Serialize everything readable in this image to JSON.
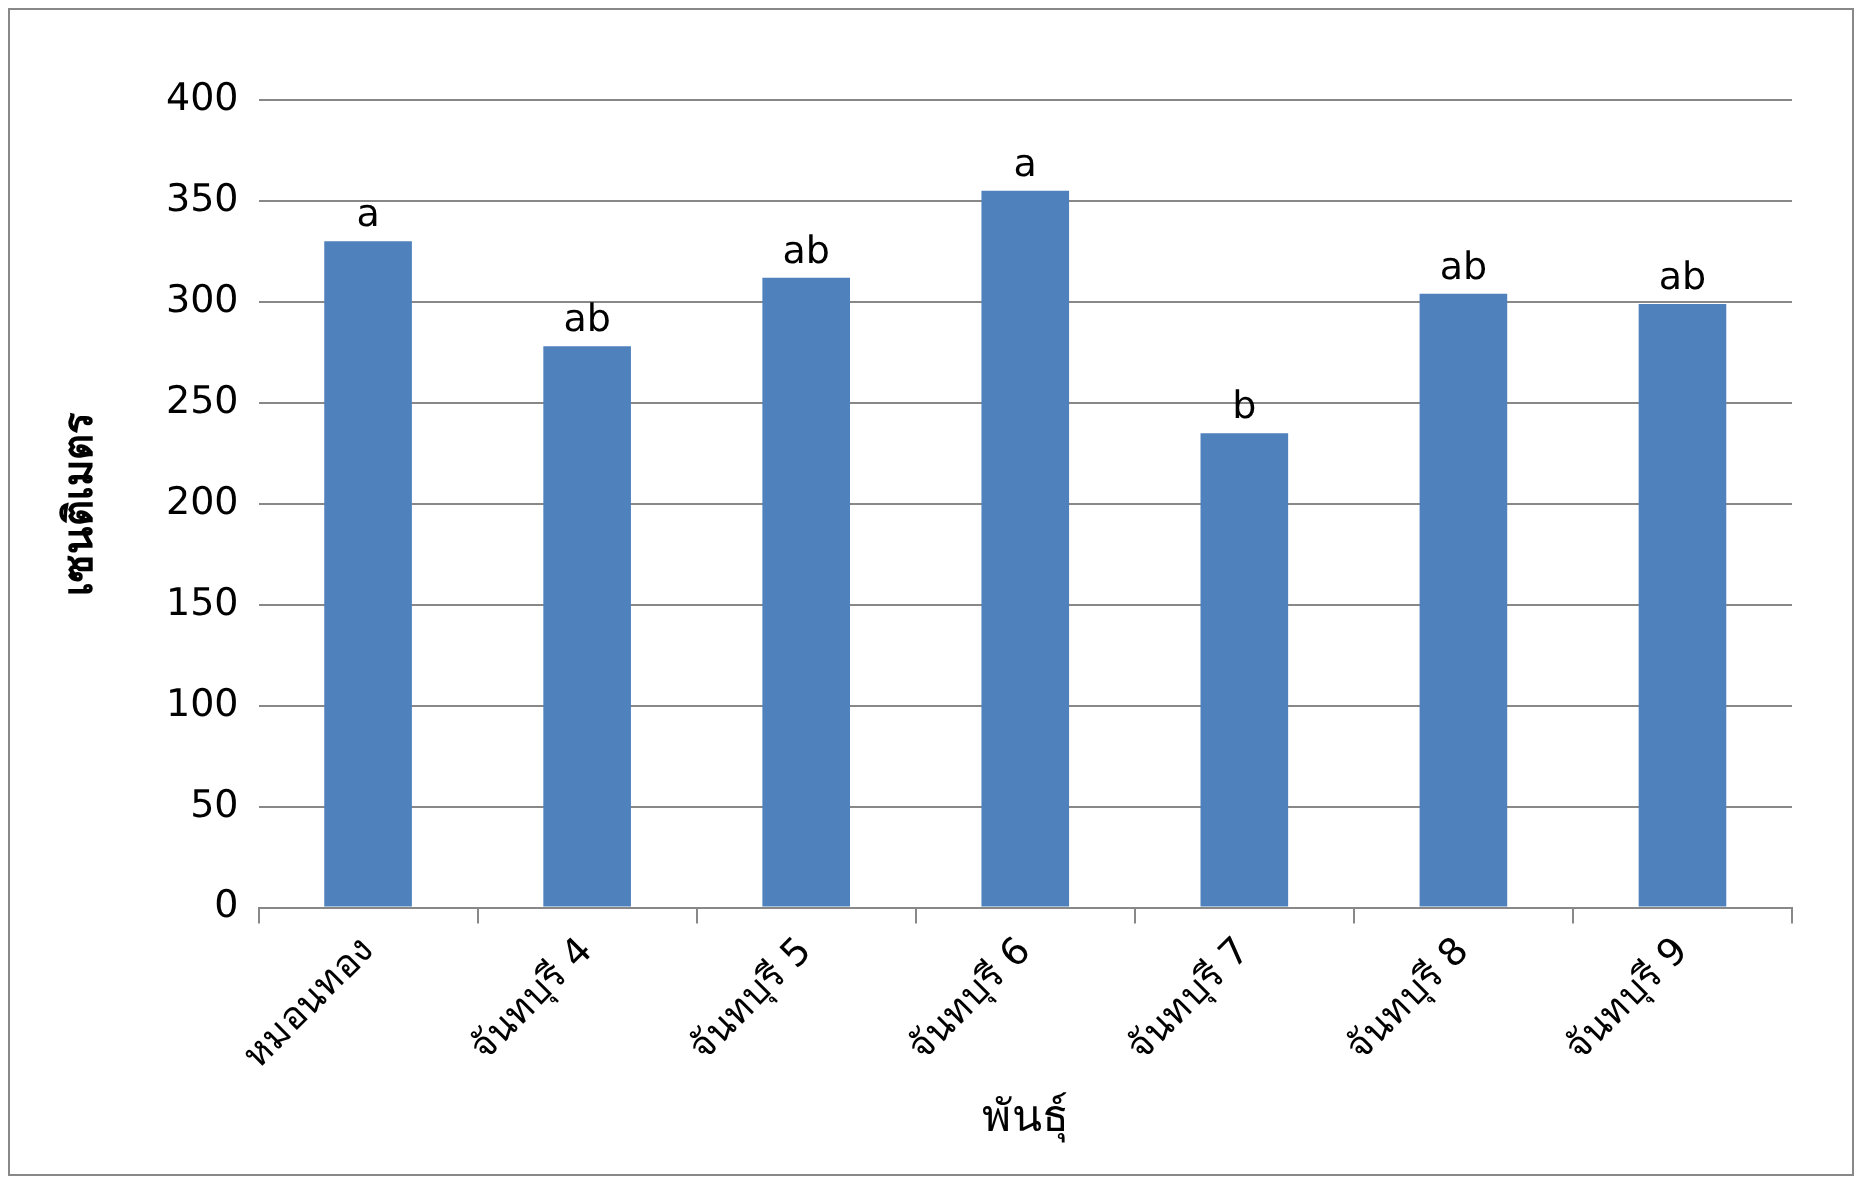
{
  "chart_data": {
    "type": "bar",
    "xlabel": "พันธุ์",
    "ylabel": "เซนติเมตร",
    "categories": [
      "หมอนทอง",
      "จันทบุรี 4",
      "จันทบุรี 5",
      "จันทบุรี 6",
      "จันทบุรี 7",
      "จันทบุรี 8",
      "จันทบุรี 9"
    ],
    "values": [
      330,
      278,
      312,
      355,
      235,
      304,
      299
    ],
    "color": "#4f81bd",
    "ylim": [
      0,
      400
    ],
    "yticks": [
      0,
      50,
      100,
      150,
      200,
      250,
      300,
      350,
      400
    ],
    "grid": "y",
    "legend": false,
    "annotations": [
      {
        "text": "a",
        "x": "หมอนทอง",
        "y": 330
      },
      {
        "text": "ab",
        "x": "จันทบุรี 4",
        "y": 278
      },
      {
        "text": "ab",
        "x": "จันทบุรี 5",
        "y": 312
      },
      {
        "text": "a",
        "x": "จันทบุรี 6",
        "y": 355
      },
      {
        "text": "b",
        "x": "จันทบุรี 7",
        "y": 235
      },
      {
        "text": "ab",
        "x": "จันทบุรี 8",
        "y": 304
      },
      {
        "text": "ab",
        "x": "จันทบุรี 9",
        "y": 299
      }
    ]
  }
}
